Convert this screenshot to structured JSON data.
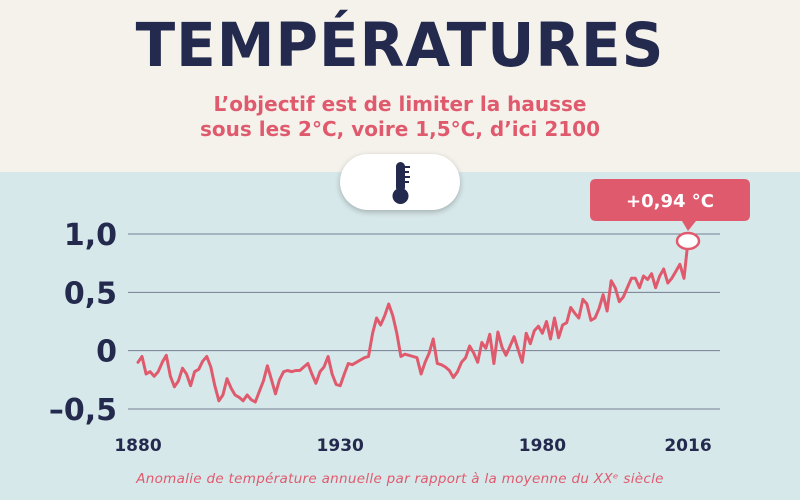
{
  "header": {
    "title": "TEMPÉRATURES",
    "subtitle_line1": "L’objectif est de limiter la hausse",
    "subtitle_line2": "sous les 2°C, voire 1,5°C, d’ici 2100"
  },
  "footer": {
    "caption": "Anomalie de température annuelle par rapport à la moyenne du XXᵉ siècle"
  },
  "icons": {
    "thermometer": "thermometer-icon"
  },
  "colors": {
    "title": "#232a4d",
    "accent": "#e05a6e",
    "line": "#e05a6e",
    "background": "#d7e8ea",
    "header_background": "#f5f2ec",
    "grid": "#232a4d"
  },
  "chart_data": {
    "type": "line",
    "title": "",
    "xlabel": "",
    "ylabel": "",
    "xlim": [
      1880,
      2016
    ],
    "ylim": [
      -0.55,
      1.15
    ],
    "y_ticks": [
      {
        "value": 1.0,
        "label": "1,0"
      },
      {
        "value": 0.5,
        "label": "0,5"
      },
      {
        "value": 0.0,
        "label": "0"
      },
      {
        "value": -0.5,
        "label": "–0,5"
      }
    ],
    "x_ticks": [
      {
        "value": 1880,
        "label": "1880"
      },
      {
        "value": 1930,
        "label": "1930"
      },
      {
        "value": 1980,
        "label": "1980"
      },
      {
        "value": 2016,
        "label": "2016"
      }
    ],
    "grid": true,
    "annotation": {
      "x": 2016,
      "y": 0.94,
      "label": "+0,94 °C"
    },
    "series": [
      {
        "name": "",
        "x": [
          1880,
          1881,
          1882,
          1883,
          1884,
          1885,
          1886,
          1887,
          1888,
          1889,
          1890,
          1891,
          1892,
          1893,
          1894,
          1895,
          1896,
          1897,
          1898,
          1899,
          1900,
          1901,
          1902,
          1903,
          1904,
          1905,
          1906,
          1907,
          1908,
          1909,
          1910,
          1911,
          1912,
          1913,
          1914,
          1915,
          1916,
          1917,
          1918,
          1919,
          1920,
          1921,
          1922,
          1923,
          1924,
          1925,
          1926,
          1927,
          1928,
          1929,
          1930,
          1931,
          1932,
          1933,
          1934,
          1935,
          1936,
          1937,
          1938,
          1939,
          1940,
          1941,
          1942,
          1943,
          1944,
          1945,
          1946,
          1947,
          1948,
          1949,
          1950,
          1951,
          1952,
          1953,
          1954,
          1955,
          1956,
          1957,
          1958,
          1959,
          1960,
          1961,
          1962,
          1963,
          1964,
          1965,
          1966,
          1967,
          1968,
          1969,
          1970,
          1971,
          1972,
          1973,
          1974,
          1975,
          1976,
          1977,
          1978,
          1979,
          1980,
          1981,
          1982,
          1983,
          1984,
          1985,
          1986,
          1987,
          1988,
          1989,
          1990,
          1991,
          1992,
          1993,
          1994,
          1995,
          1996,
          1997,
          1998,
          1999,
          2000,
          2001,
          2002,
          2003,
          2004,
          2005,
          2006,
          2007,
          2008,
          2009,
          2010,
          2011,
          2012,
          2013,
          2014,
          2015,
          2016
        ],
        "y": [
          -0.1,
          -0.05,
          -0.2,
          -0.18,
          -0.22,
          -0.18,
          -0.1,
          -0.04,
          -0.22,
          -0.31,
          -0.26,
          -0.15,
          -0.2,
          -0.3,
          -0.18,
          -0.16,
          -0.09,
          -0.05,
          -0.14,
          -0.3,
          -0.43,
          -0.38,
          -0.24,
          -0.32,
          -0.38,
          -0.4,
          -0.43,
          -0.38,
          -0.42,
          -0.44,
          -0.35,
          -0.26,
          -0.13,
          -0.25,
          -0.37,
          -0.25,
          -0.18,
          -0.17,
          -0.18,
          -0.17,
          -0.17,
          -0.14,
          -0.11,
          -0.2,
          -0.28,
          -0.18,
          -0.14,
          -0.05,
          -0.2,
          -0.29,
          -0.3,
          -0.2,
          -0.11,
          -0.12,
          -0.1,
          -0.08,
          -0.06,
          -0.05,
          0.15,
          0.28,
          0.22,
          0.3,
          0.4,
          0.3,
          0.15,
          -0.05,
          -0.03,
          -0.04,
          -0.05,
          -0.06,
          -0.2,
          -0.1,
          -0.02,
          0.1,
          -0.11,
          -0.12,
          -0.14,
          -0.17,
          -0.23,
          -0.18,
          -0.1,
          -0.06,
          0.04,
          -0.02,
          -0.1,
          0.07,
          0.02,
          0.14,
          -0.11,
          0.16,
          0.03,
          -0.04,
          0.04,
          0.12,
          0.01,
          -0.1,
          0.15,
          0.06,
          0.17,
          0.21,
          0.15,
          0.25,
          0.1,
          0.28,
          0.11,
          0.22,
          0.24,
          0.37,
          0.32,
          0.28,
          0.44,
          0.4,
          0.26,
          0.28,
          0.36,
          0.48,
          0.34,
          0.6,
          0.54,
          0.42,
          0.46,
          0.54,
          0.62,
          0.62,
          0.54,
          0.64,
          0.61,
          0.66,
          0.54,
          0.64,
          0.7,
          0.58,
          0.62,
          0.68,
          0.74,
          0.62,
          0.94
        ]
      }
    ]
  }
}
